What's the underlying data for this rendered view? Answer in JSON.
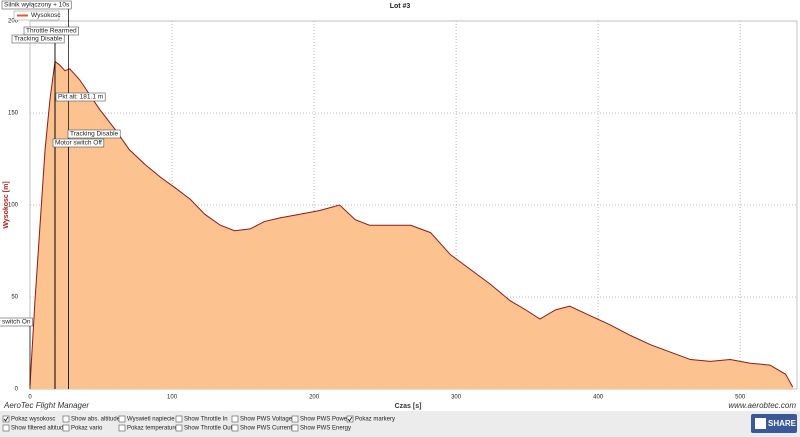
{
  "chart_data": {
    "type": "area",
    "title": "Lot #3",
    "xlabel": "Czas [s]",
    "ylabel": "Wysokosc [m]",
    "series": [
      {
        "name": "Wysokosc",
        "color": "#8b1a1a",
        "fill": "#fcc28f",
        "x": [
          0,
          3.5,
          10.6,
          14,
          17.6,
          21,
          24.6,
          28,
          35,
          42,
          49,
          60,
          70,
          81,
          92,
          102.8,
          113,
          123,
          134,
          144,
          155,
          165,
          176,
          190,
          204,
          218,
          229,
          239,
          253,
          268,
          282,
          296,
          310,
          324,
          338,
          349,
          359,
          370,
          380,
          394,
          408,
          423,
          437,
          451,
          465,
          479,
          493,
          507,
          521,
          532,
          537
        ],
        "values": [
          2,
          48,
          130,
          157,
          178,
          176,
          173,
          174,
          168,
          160,
          152,
          141,
          130,
          122,
          115,
          109,
          103,
          95,
          89,
          86,
          87,
          91,
          93,
          95,
          97,
          100,
          92,
          89,
          89,
          89,
          85,
          73,
          65,
          57,
          48,
          43,
          38,
          43,
          45,
          40,
          35,
          29,
          24,
          20,
          16,
          15,
          16,
          14,
          13,
          8,
          1
        ]
      }
    ],
    "xlim": [
      0,
      540
    ],
    "xticks": [
      0,
      100,
      200,
      300,
      400,
      500
    ],
    "ylim": [
      0,
      200
    ],
    "yticks": [
      0,
      50,
      100,
      150,
      200
    ],
    "grid": true,
    "legend": "top-left",
    "annotations": [
      {
        "text": "Silnik wyłączony + 10s",
        "x": 27
      },
      {
        "text": "Throttle Rearmed",
        "x": 17.6
      },
      {
        "text": "Tracking Disable",
        "x": 17.6
      },
      {
        "text": "Pkt alt: 181.1 m",
        "x": 17.6
      },
      {
        "text": "Tracking Disable",
        "x": 27
      },
      {
        "text": "Motor switch Off",
        "x": 17.6
      },
      {
        "text": "r switch On",
        "x": 0
      }
    ]
  },
  "footer": {
    "app": "AeroTec Flight Manager",
    "site": "www.aerobtec.com",
    "share": "SHARE"
  },
  "options": [
    {
      "label": "Pokaz wysokosc",
      "checked": true
    },
    {
      "label": "Show filtered altitude",
      "checked": false
    },
    {
      "label": "Show abs. altitude",
      "checked": false
    },
    {
      "label": "Pokaz vario",
      "checked": false
    },
    {
      "label": "Wyswietl napiecie",
      "checked": false
    },
    {
      "label": "Pokaz temperature",
      "checked": false
    },
    {
      "label": "Show Throttle In",
      "checked": false
    },
    {
      "label": "Show Throttle Out",
      "checked": false
    },
    {
      "label": "Show PWS Voltage",
      "checked": false
    },
    {
      "label": "Show PWS Current",
      "checked": false
    },
    {
      "label": "Show PWS Power",
      "checked": false
    },
    {
      "label": "Show PWS Energy",
      "checked": false
    },
    {
      "label": "Pokaz markery",
      "checked": true
    }
  ]
}
